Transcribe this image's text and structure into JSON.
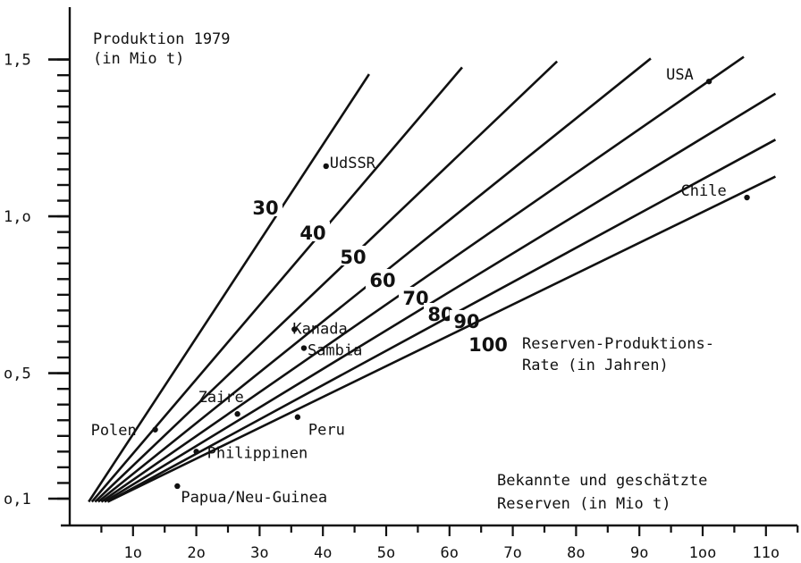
{
  "chart_data": {
    "type": "line",
    "title": "",
    "ylabel": [
      "Produktion 1979",
      "(in Mio t)"
    ],
    "xlabel": [
      "Bekannte und geschätzte",
      "Reserven (in Mio t)"
    ],
    "lines_caption": [
      "Reserven-Produktions-",
      "Rate (in Jahren)"
    ],
    "x_ticks": [
      {
        "value": 10,
        "label": "1o"
      },
      {
        "value": 20,
        "label": "2o"
      },
      {
        "value": 30,
        "label": "3o"
      },
      {
        "value": 40,
        "label": "4o"
      },
      {
        "value": 50,
        "label": "5o"
      },
      {
        "value": 60,
        "label": "6o"
      },
      {
        "value": 70,
        "label": "7o"
      },
      {
        "value": 80,
        "label": "8o"
      },
      {
        "value": 90,
        "label": "9o"
      },
      {
        "value": 100,
        "label": "1oo"
      },
      {
        "value": 110,
        "label": "11o"
      }
    ],
    "y_ticks": [
      {
        "value": 0.1,
        "label": "o,1"
      },
      {
        "value": 0.5,
        "label": "o,5"
      },
      {
        "value": 1.0,
        "label": "1,o"
      },
      {
        "value": 1.5,
        "label": "1,5"
      }
    ],
    "xlim": [
      0,
      115
    ],
    "ylim": [
      0.05,
      1.6
    ],
    "rate_lines": [
      {
        "label": "30",
        "years": 30,
        "x_start": 3,
        "x_end": 47.3
      },
      {
        "label": "40",
        "years": 40,
        "x_start": 3.5,
        "x_end": 62
      },
      {
        "label": "50",
        "years": 50,
        "x_start": 4,
        "x_end": 77
      },
      {
        "label": "60",
        "years": 60,
        "x_start": 4.5,
        "x_end": 91.8
      },
      {
        "label": "70",
        "years": 70,
        "x_start": 5,
        "x_end": 106.5
      },
      {
        "label": "80",
        "years": 80,
        "x_start": 5.5,
        "x_end": 111.5
      },
      {
        "label": "90",
        "years": 90,
        "x_start": 6,
        "x_end": 111.5
      },
      {
        "label": "100",
        "years": 100,
        "x_start": 6,
        "x_end": 111.5
      }
    ],
    "points": [
      {
        "name": "USA",
        "x": 101,
        "y": 1.43
      },
      {
        "name": "UdSSR",
        "x": 40.5,
        "y": 1.16
      },
      {
        "name": "Chile",
        "x": 107,
        "y": 1.06
      },
      {
        "name": "Kanada",
        "x": 35.5,
        "y": 0.64
      },
      {
        "name": "Sambia",
        "x": 37,
        "y": 0.58
      },
      {
        "name": "Zaire",
        "x": 26.5,
        "y": 0.37
      },
      {
        "name": "Peru",
        "x": 36,
        "y": 0.36
      },
      {
        "name": "Polen",
        "x": 13.5,
        "y": 0.32
      },
      {
        "name": "Philippinen",
        "x": 20,
        "y": 0.25
      },
      {
        "name": "Papua/Neu-Guinea",
        "x": 17,
        "y": 0.14
      }
    ]
  }
}
